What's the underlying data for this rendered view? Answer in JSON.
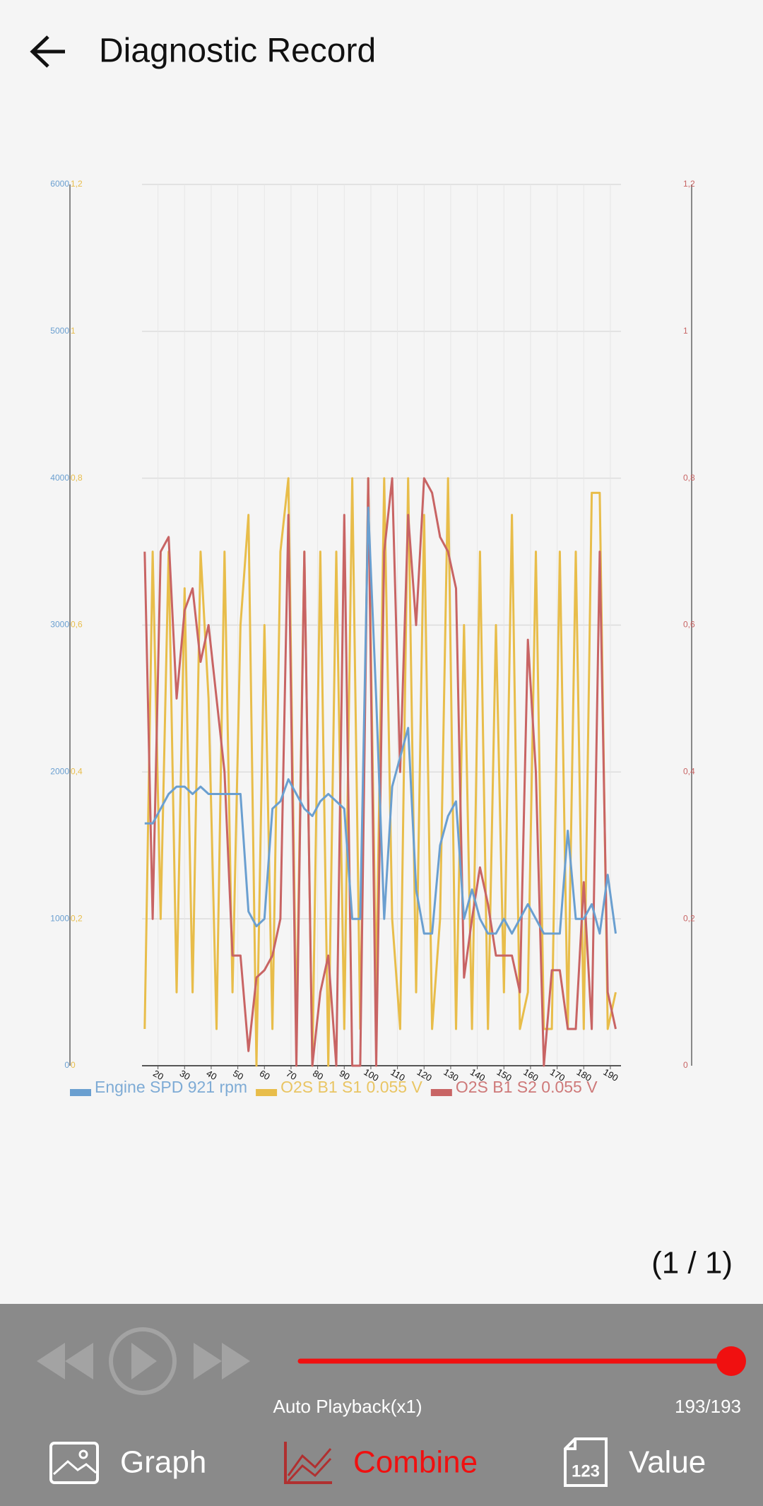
{
  "header": {
    "title": "Diagnostic Record"
  },
  "chart_data": {
    "type": "line",
    "x": [
      15,
      18,
      21,
      24,
      27,
      30,
      33,
      36,
      39,
      42,
      45,
      48,
      51,
      54,
      57,
      60,
      63,
      66,
      69,
      72,
      75,
      78,
      81,
      84,
      87,
      90,
      93,
      96,
      99,
      102,
      105,
      108,
      111,
      114,
      117,
      120,
      123,
      126,
      129,
      132,
      135,
      138,
      141,
      144,
      147,
      150,
      153,
      156,
      159,
      162,
      165,
      168,
      171,
      174,
      177,
      180,
      183,
      186,
      189,
      192
    ],
    "xlim": [
      14,
      194
    ],
    "xticks": [
      20,
      30,
      40,
      50,
      60,
      70,
      80,
      90,
      100,
      110,
      120,
      130,
      140,
      150,
      160,
      170,
      180,
      190
    ],
    "ylim": [
      0,
      6000
    ],
    "yticks": [
      0,
      1000,
      2000,
      3000,
      4000,
      5000,
      6000
    ],
    "y2lim": [
      0,
      1.2
    ],
    "y2ticks": [
      0,
      {
        "value": 0.2,
        "label": "0,2"
      },
      {
        "value": 0.4,
        "label": "0,4"
      },
      {
        "value": 0.6,
        "label": "0,6"
      },
      {
        "value": 0.8,
        "label": "0,8"
      },
      1,
      {
        "value": 1.2,
        "label": "1,2"
      }
    ],
    "y3lim": [
      0,
      1.2
    ],
    "y3ticks": [
      0,
      {
        "value": 0.2,
        "label": "0,2"
      },
      {
        "value": 0.4,
        "label": "0,4"
      },
      {
        "value": 0.6,
        "label": "0,6"
      },
      {
        "value": 0.8,
        "label": "0,8"
      },
      1,
      {
        "value": 1.2,
        "label": "1,2"
      }
    ],
    "grid": true,
    "legend": "bottom",
    "series": [
      {
        "name": "Engine SPD 921 rpm",
        "color": "#6a9fd0",
        "axis": "y",
        "values": [
          1650,
          1650,
          1750,
          1850,
          1900,
          1900,
          1850,
          1900,
          1850,
          1850,
          1850,
          1850,
          1850,
          1050,
          950,
          1000,
          1750,
          1800,
          1950,
          1850,
          1750,
          1700,
          1800,
          1850,
          1800,
          1750,
          1000,
          1000,
          3800,
          2500,
          1000,
          1900,
          2100,
          2300,
          1200,
          900,
          900,
          1500,
          1700,
          1800,
          1000,
          1200,
          1000,
          900,
          900,
          1000,
          900,
          1000,
          1100,
          1000,
          900,
          900,
          900,
          1600,
          1000,
          1000,
          1100,
          900,
          1300,
          900
        ]
      },
      {
        "name": "O2S B1 S1 0.055 V",
        "color": "#e8bd4a",
        "axis": "y2",
        "values": [
          0.05,
          0.7,
          0.2,
          0.7,
          0.1,
          0.65,
          0.1,
          0.7,
          0.5,
          0.05,
          0.7,
          0.1,
          0.6,
          0.75,
          0.0,
          0.6,
          0.05,
          0.7,
          0.8,
          0.05,
          0.7,
          0.0,
          0.7,
          0.0,
          0.7,
          0.05,
          0.8,
          0.05,
          0.8,
          0.1,
          0.8,
          0.2,
          0.05,
          0.8,
          0.1,
          0.75,
          0.05,
          0.2,
          0.8,
          0.05,
          0.6,
          0.05,
          0.7,
          0.05,
          0.6,
          0.1,
          0.75,
          0.05,
          0.1,
          0.7,
          0.05,
          0.05,
          0.7,
          0.05,
          0.7,
          0.05,
          0.78,
          0.78,
          0.05,
          0.1
        ]
      },
      {
        "name": "O2S B1 S2 0.055 V",
        "color": "#c86464",
        "axis": "y3",
        "values": [
          0.7,
          0.2,
          0.7,
          0.72,
          0.5,
          0.62,
          0.65,
          0.55,
          0.6,
          0.5,
          0.4,
          0.15,
          0.15,
          0.02,
          0.12,
          0.13,
          0.15,
          0.2,
          0.75,
          0.0,
          0.7,
          0.0,
          0.1,
          0.15,
          0.0,
          0.75,
          0.0,
          0.0,
          0.8,
          0.0,
          0.7,
          0.8,
          0.4,
          0.75,
          0.6,
          0.8,
          0.78,
          0.72,
          0.7,
          0.65,
          0.12,
          0.2,
          0.27,
          0.22,
          0.15,
          0.15,
          0.15,
          0.1,
          0.58,
          0.4,
          0.0,
          0.13,
          0.13,
          0.05,
          0.05,
          0.25,
          0.05,
          0.7,
          0.1,
          0.05
        ]
      }
    ]
  },
  "page_indicator": "(1 / 1)",
  "playback": {
    "label": "Auto Playback(x1)",
    "position": "193/193"
  },
  "tabs": [
    {
      "label": "Graph"
    },
    {
      "label": "Combine"
    },
    {
      "label": "Value",
      "icon_text": "123"
    }
  ]
}
